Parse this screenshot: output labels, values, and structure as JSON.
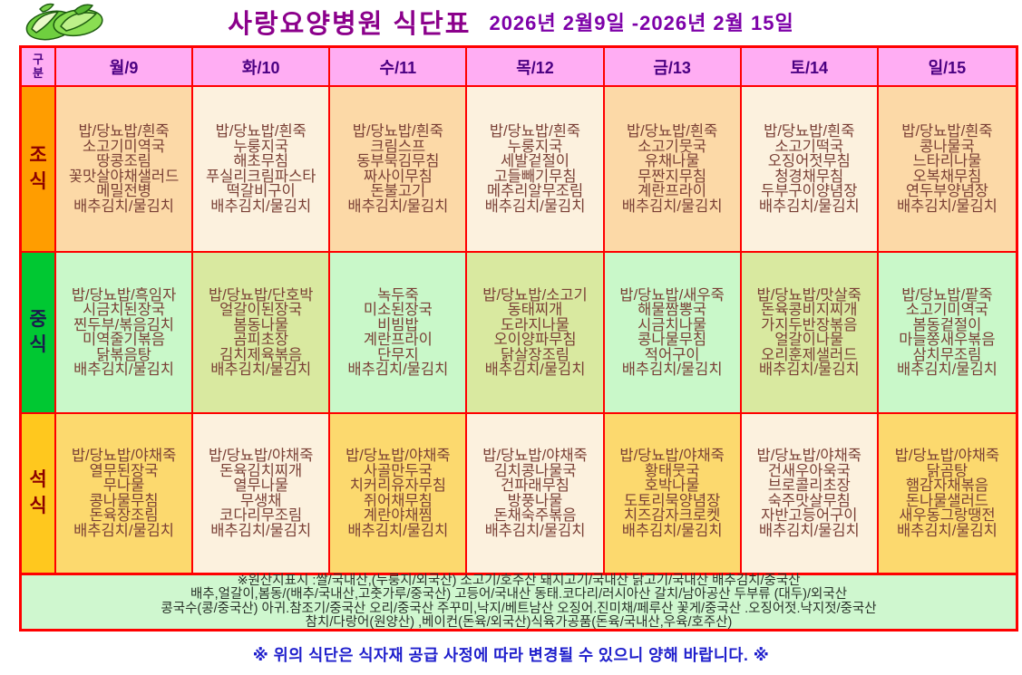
{
  "header": {
    "title": "사랑요양병원  식단표",
    "date_range": "2026년 2월9일 -2026년 2월 15일",
    "logo_icon": "cabbage-icon"
  },
  "table": {
    "corner_label": "구분",
    "days": [
      "월/9",
      "화/10",
      "수/11",
      "목/12",
      "금/13",
      "토/14",
      "일/15"
    ],
    "meals": [
      {
        "label": "조식",
        "label_bg": "#FF9D00",
        "label_color": "#8B0000",
        "col_bg_a": "#FCD9A7",
        "col_bg_b": "#FCF1DE",
        "menus": [
          [
            "밥/당뇨밥/흰죽",
            "소고기미역국",
            "땅콩조림",
            "꽃맛살야채샐러드",
            "메밀전병",
            "배추김치/물김치"
          ],
          [
            "밥/당뇨밥/흰죽",
            "누룽지국",
            "해초무침",
            "푸실리크림파스타",
            "떡갈비구이",
            "배추김치/물김치"
          ],
          [
            "밥/당뇨밥/흰죽",
            "크림스프",
            "동부묵김무침",
            "짜사이무침",
            "돈불고기",
            "배추김치/물김치"
          ],
          [
            "밥/당뇨밥/흰죽",
            "누룽지국",
            "세발겉절이",
            "고들빼기무침",
            "메추리알무조림",
            "배추김치/물김치"
          ],
          [
            "밥/당뇨밥/흰죽",
            "소고기뭇국",
            "유채나물",
            "무짠지무침",
            "계란프라이",
            "배추김치/물김치"
          ],
          [
            "밥/당뇨밥/흰죽",
            "소고기떡국",
            "오징어젓무침",
            "청경채무침",
            "두부구이양념장",
            "배추김치/물김치"
          ],
          [
            "밥/당뇨밥/흰죽",
            "콩나물국",
            "느타리나물",
            "오복채무침",
            "연두부양념장",
            "배추김치/물김치"
          ]
        ]
      },
      {
        "label": "중식",
        "label_bg": "#00C832",
        "label_color": "#1A1A4D",
        "col_bg_a": "#C9F8C9",
        "col_bg_b": "#D9E9A0",
        "menus": [
          [
            "밥/당뇨밥/흑임자",
            "시금치된장국",
            "찐두부/볶음김치",
            "미역줄기볶음",
            "닭볶음탕",
            "배추김치/물김치"
          ],
          [
            "밥/당뇨밥/단호박",
            "얼갈이된장국",
            "봄동나물",
            "곰피초장",
            "김치제육볶음",
            "배추김치/물김치"
          ],
          [
            "녹두죽",
            "미소된장국",
            "비빔밥",
            "계란프라이",
            "단무지",
            "배추김치/물김치"
          ],
          [
            "밥/당뇨밥/소고기",
            "동태찌개",
            "도라지나물",
            "오이양파무침",
            "닭살장조림",
            "배추김치/물김치"
          ],
          [
            "밥/당뇨밥/새우죽",
            "해물짬뽕국",
            "시금치나물",
            "콩나물무침",
            "적어구이",
            "배추김치/물김치"
          ],
          [
            "밥/당뇨밥/맛살죽",
            "돈육콩비지찌개",
            "가지두반장볶음",
            "얼갈이나물",
            "오리훈제샐러드",
            "배추김치/물김치"
          ],
          [
            "밥/당뇨밥/팥죽",
            "소고기미역국",
            "봄동겉절이",
            "마늘쫑새우볶음",
            "삼치무조림",
            "배추김치/물김치"
          ]
        ]
      },
      {
        "label": "석식",
        "label_bg": "#FFC81E",
        "label_color": "#8B0000",
        "col_bg_a": "#FCD96E",
        "col_bg_b": "#FCF1DE",
        "menus": [
          [
            "밥/당뇨밥/야채죽",
            "열무된장국",
            "무나물",
            "콩나물무침",
            "돈육장조림",
            "배추김치/물김치"
          ],
          [
            "밥/당뇨밥/야채죽",
            "돈육김치찌개",
            "열무나물",
            "무생채",
            "코다리무조림",
            "배추김치/물김치"
          ],
          [
            "밥/당뇨밥/야채죽",
            "사골만두국",
            "치커리유자무침",
            "쥐어채무침",
            "계란야채찜",
            "배추김치/물김치"
          ],
          [
            "밥/당뇨밥/야채죽",
            "김치콩나물국",
            "건파래무침",
            "방풍나물",
            "돈채숙주볶음",
            "배추김치/물김치"
          ],
          [
            "밥/당뇨밥/야채죽",
            "황태뭇국",
            "호박나물",
            "도토리묵양념장",
            "치즈감자크로켓",
            "배추김치/물김치"
          ],
          [
            "밥/당뇨밥/야채죽",
            "건새우아욱국",
            "브로콜리초장",
            "숙주맛살무침",
            "자반고등어구이",
            "배추김치/물김치"
          ],
          [
            "밥/당뇨밥/야채죽",
            "닭곰탕",
            "햄감자채볶음",
            "돈나물샐러드",
            "새우동그랑땡전",
            "배추김치/물김치"
          ]
        ]
      }
    ]
  },
  "footer": {
    "origin_lines": [
      "※원산지표시 :쌀/국내산,(누룽지/외국산) 소고기/호주산  돼지고기/국내산 닭고기/국내산 배추김치/중국산",
      "배추,얼갈이,봄동/(배추/국내산,고춧가루/중국산) 고등어/국내산  동태.코다리/러시아산  갈치/남아공산  두부류 (대두)/외국산",
      "콩국수(콩/중국산)  아귀.참조기/중국산  오리/중국산 주꾸미,낙지/베트남산 오징어.진미채/페루산  꽃게/중국산  .오징어젓.낙지젓/중국산",
      "참치/다랑어(원양산)  ,베이컨(돈육/외국산)식육가공품(돈육/국내산,우육/호주산)"
    ],
    "notice": "※ 위의 식단은 식자재 공급 사정에 따라 변경될 수 있으니 양해 바랍니다. ※"
  },
  "colors": {
    "border_red": "#FF0000",
    "header_pink": "#FFADF3",
    "header_text": "#4B0082",
    "title_purple": "#8B008B",
    "date_purple": "#7D00A8",
    "menu_text": "#7A4036",
    "footer_bg": "#CFF7CF",
    "notice_blue": "#1E1ECC"
  }
}
